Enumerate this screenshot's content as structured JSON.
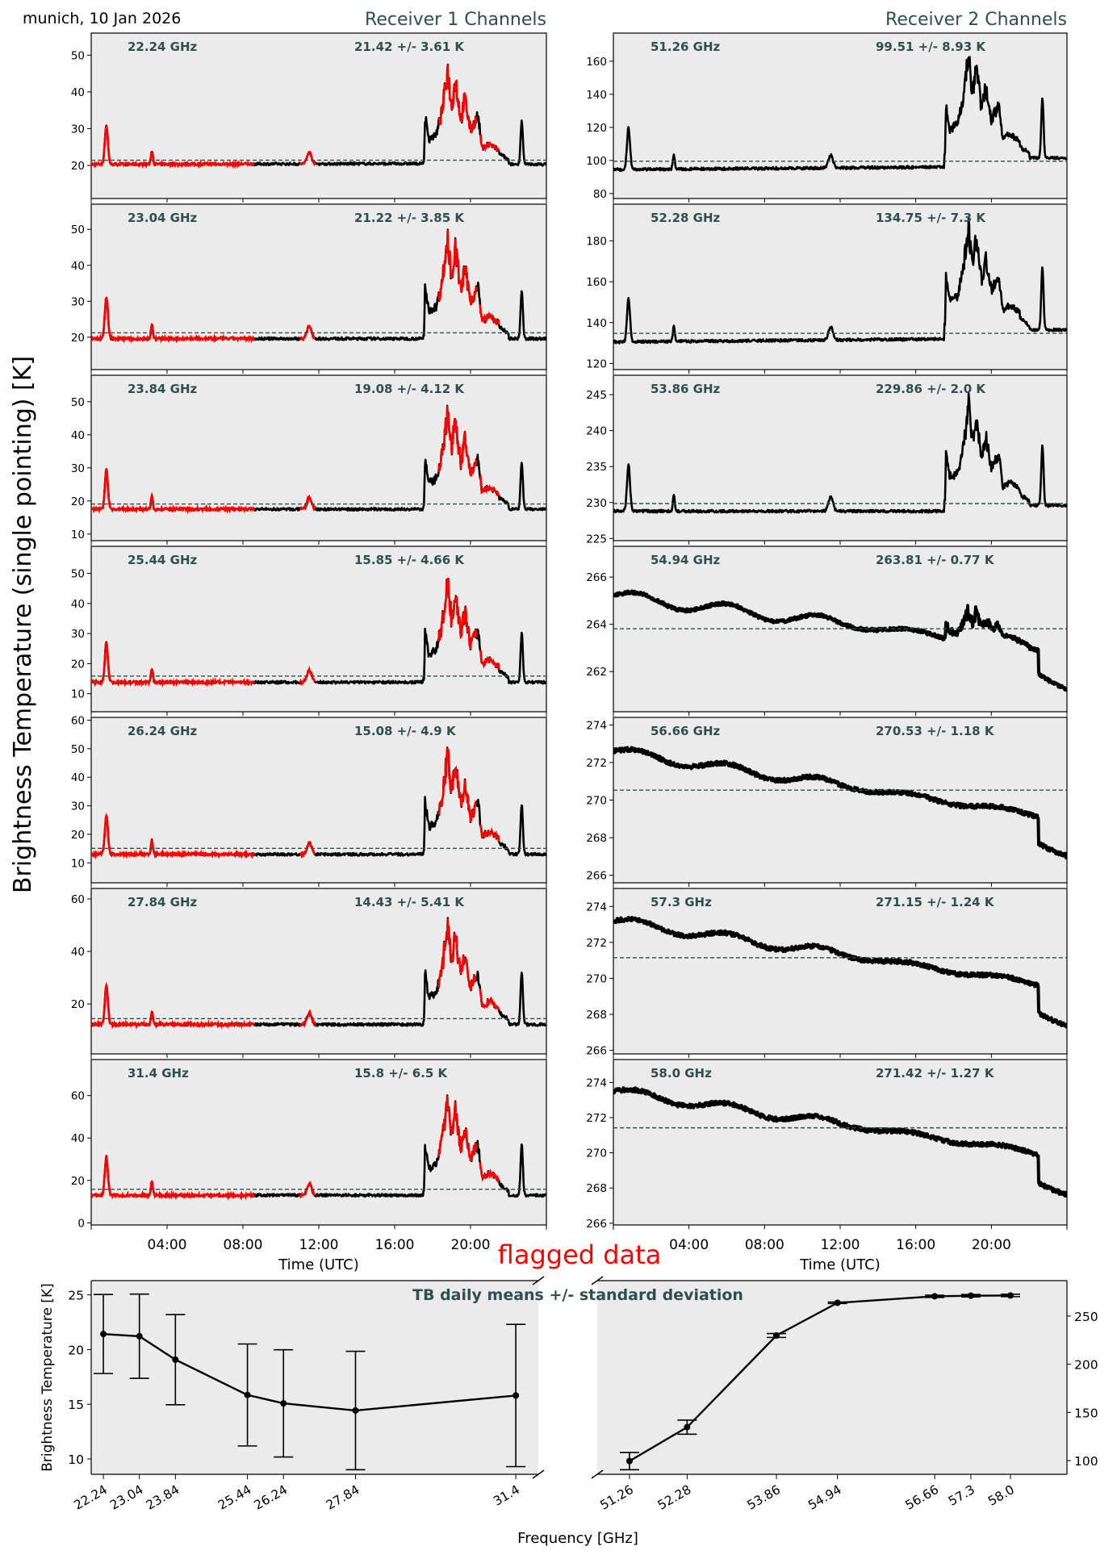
{
  "figure": {
    "location_date": "munich, 10 Jan 2026",
    "receiver1_title": "Receiver 1 Channels",
    "receiver2_title": "Receiver 2 Channels",
    "ylabel": "Brightness Temperature (single pointing) [K]",
    "time_xlabel": "Time (UTC)",
    "flag_annotation": "flagged data",
    "colors": {
      "background": "#ebebeb",
      "trace": "#000000",
      "flagged": "#ff0000",
      "mean_line": "#2f4f4f",
      "label_text": "#2f4f4f"
    }
  },
  "chart_data": [
    {
      "type": "line",
      "title": "Receiver 1 Channels",
      "xlabel": "Time (UTC)",
      "ylabel": "Brightness Temperature (single pointing) [K]",
      "x_unit": "hours UTC",
      "xlim": [
        0,
        24
      ],
      "xticks": [
        4,
        8,
        12,
        16,
        20
      ],
      "xtick_labels": [
        "04:00",
        "08:00",
        "12:00",
        "16:00",
        "20:00"
      ],
      "grid": false,
      "flagged_color": "#ff0000",
      "panels": [
        {
          "freq_label": "22.24 GHz",
          "stat_label": "21.42 +/- 3.61 K",
          "mean": 21.42,
          "std": 3.61,
          "ylim": [
            11,
            56
          ],
          "yticks": [
            20,
            30,
            40,
            50
          ],
          "base": 20.3,
          "step": 20.5,
          "peak": 48.7,
          "spike": 30.8,
          "late": 32.2
        },
        {
          "freq_label": "23.04 GHz",
          "stat_label": "21.22 +/- 3.85 K",
          "mean": 21.22,
          "std": 3.85,
          "ylim": [
            11,
            57
          ],
          "yticks": [
            20,
            30,
            40,
            50
          ],
          "base": 19.6,
          "step": 19.6,
          "peak": 50.2,
          "spike": 31.2,
          "late": 32.8
        },
        {
          "freq_label": "23.84 GHz",
          "stat_label": "19.08 +/- 4.12 K",
          "mean": 19.08,
          "std": 4.12,
          "ylim": [
            8,
            58
          ],
          "yticks": [
            10,
            20,
            30,
            40,
            50
          ],
          "base": 17.5,
          "step": 17.5,
          "peak": 50.0,
          "spike": 29.3,
          "late": 31.8
        },
        {
          "freq_label": "25.44 GHz",
          "stat_label": "15.85 +/- 4.66 K",
          "mean": 15.85,
          "std": 4.66,
          "ylim": [
            4,
            59
          ],
          "yticks": [
            10,
            20,
            30,
            40,
            50
          ],
          "base": 13.8,
          "step": 13.8,
          "peak": 50.7,
          "spike": 27.0,
          "late": 30.3
        },
        {
          "freq_label": "26.24 GHz",
          "stat_label": "15.08 +/- 4.9 K",
          "mean": 15.08,
          "std": 4.9,
          "ylim": [
            3,
            61
          ],
          "yticks": [
            10,
            20,
            30,
            40,
            50,
            60
          ],
          "base": 13.0,
          "step": 13.0,
          "peak": 51.6,
          "spike": 26.5,
          "late": 30.5
        },
        {
          "freq_label": "27.84 GHz",
          "stat_label": "14.43 +/- 5.41 K",
          "mean": 14.43,
          "std": 5.41,
          "ylim": [
            1,
            64
          ],
          "yticks": [
            20,
            40,
            60
          ],
          "base": 12.2,
          "step": 12.2,
          "peak": 54.5,
          "spike": 26.8,
          "late": 32.0
        },
        {
          "freq_label": "31.4 GHz",
          "stat_label": "15.8 +/- 6.5 K",
          "mean": 15.8,
          "std": 6.5,
          "ylim": [
            -1,
            77
          ],
          "yticks": [
            0,
            20,
            40,
            60
          ],
          "base": 13.0,
          "step": 13.0,
          "peak": 64.0,
          "spike": 31.0,
          "late": 37.0
        }
      ]
    },
    {
      "type": "line",
      "title": "Receiver 2 Channels",
      "xlabel": "Time (UTC)",
      "x_unit": "hours UTC",
      "xlim": [
        0,
        24
      ],
      "xticks": [
        4,
        8,
        12,
        16,
        20
      ],
      "xtick_labels": [
        "04:00",
        "08:00",
        "12:00",
        "16:00",
        "20:00"
      ],
      "grid": false,
      "panels": [
        {
          "freq_label": "51.26 GHz",
          "stat_label": "99.51 +/- 8.93 K",
          "mean": 99.51,
          "std": 8.93,
          "ylim": [
            77,
            177
          ],
          "yticks": [
            80,
            100,
            120,
            140,
            160
          ],
          "kind": "wet",
          "base": 94.5,
          "step": 96.0,
          "peak": 160.5,
          "spike": 119.8,
          "late": 131.5,
          "tail": 101.5
        },
        {
          "freq_label": "52.28 GHz",
          "stat_label": "134.75 +/- 7.3 K",
          "mean": 134.75,
          "std": 7.3,
          "ylim": [
            117,
            198
          ],
          "yticks": [
            120,
            140,
            160,
            180
          ],
          "kind": "wet",
          "base": 130.5,
          "step": 132.0,
          "peak": 184.5,
          "spike": 151.5,
          "late": 161.0,
          "tail": 136.5
        },
        {
          "freq_label": "53.86 GHz",
          "stat_label": "229.86 +/- 2.0 K",
          "mean": 229.86,
          "std": 2.0,
          "ylim": [
            224.7,
            247.7
          ],
          "yticks": [
            225,
            230,
            235,
            240,
            245
          ],
          "kind": "wet",
          "base": 228.8,
          "step": 228.8,
          "peak": 243.8,
          "spike": 235.3,
          "late": 237.3,
          "tail": 229.6
        },
        {
          "freq_label": "54.94 GHz",
          "stat_label": "263.81 +/- 0.77 K",
          "mean": 263.81,
          "std": 0.77,
          "ylim": [
            260.3,
            267.3
          ],
          "yticks": [
            262,
            264,
            266
          ],
          "kind": "drift",
          "start": 265.2,
          "end": 263.0,
          "drop": 261.6,
          "bump": 1.6
        },
        {
          "freq_label": "56.66 GHz",
          "stat_label": "270.53 +/- 1.18 K",
          "mean": 270.53,
          "std": 1.18,
          "ylim": [
            265.6,
            274.4
          ],
          "yticks": [
            266,
            268,
            270,
            272,
            274
          ],
          "kind": "drift",
          "start": 272.6,
          "end": 269.2,
          "drop": 267.2,
          "bump": 0
        },
        {
          "freq_label": "57.3 GHz",
          "stat_label": "271.15 +/- 1.24 K",
          "mean": 271.15,
          "std": 1.24,
          "ylim": [
            265.8,
            275.0
          ],
          "yticks": [
            266,
            268,
            270,
            272,
            274
          ],
          "kind": "drift",
          "start": 273.2,
          "end": 269.7,
          "drop": 267.5,
          "bump": 0
        },
        {
          "freq_label": "58.0 GHz",
          "stat_label": "271.42 +/- 1.27 K",
          "mean": 271.42,
          "std": 1.27,
          "ylim": [
            265.9,
            275.3
          ],
          "yticks": [
            266,
            268,
            270,
            272,
            274
          ],
          "kind": "drift",
          "start": 273.5,
          "end": 270.0,
          "drop": 267.7,
          "bump": 0
        }
      ]
    },
    {
      "type": "line",
      "title": "TB daily means +/- standard deviation",
      "xlabel": "Frequency [GHz]",
      "ylabel": "Brightness Temperature [K]",
      "broken_x_axis": true,
      "left": {
        "x": [
          22.24,
          23.04,
          23.84,
          25.44,
          26.24,
          27.84,
          31.4
        ],
        "xtick_labels": [
          "22.24",
          "23.04",
          "23.84",
          "25.44",
          "26.24",
          "27.84",
          "31.4"
        ],
        "y": [
          21.42,
          21.22,
          19.08,
          15.85,
          15.08,
          14.43,
          15.8
        ],
        "yerr": [
          3.61,
          3.85,
          4.12,
          4.66,
          4.9,
          5.41,
          6.5
        ],
        "xlim": [
          21.97,
          31.9
        ],
        "ylim": [
          8.6,
          26.3
        ],
        "yticks": [
          10,
          15,
          20,
          25
        ]
      },
      "right": {
        "x": [
          51.26,
          52.28,
          53.86,
          54.94,
          56.66,
          57.3,
          58.0
        ],
        "xtick_labels": [
          "51.26",
          "52.28",
          "53.86",
          "54.94",
          "56.66",
          "57.3",
          "58.0"
        ],
        "y": [
          99.51,
          134.75,
          229.86,
          263.81,
          270.53,
          271.15,
          271.42
        ],
        "yerr": [
          8.93,
          7.3,
          2.0,
          0.77,
          1.18,
          1.24,
          1.27
        ],
        "xlim": [
          50.69,
          59.0
        ],
        "ylim": [
          85.8,
          286.8
        ],
        "yticks": [
          100,
          150,
          200,
          250
        ]
      }
    }
  ]
}
